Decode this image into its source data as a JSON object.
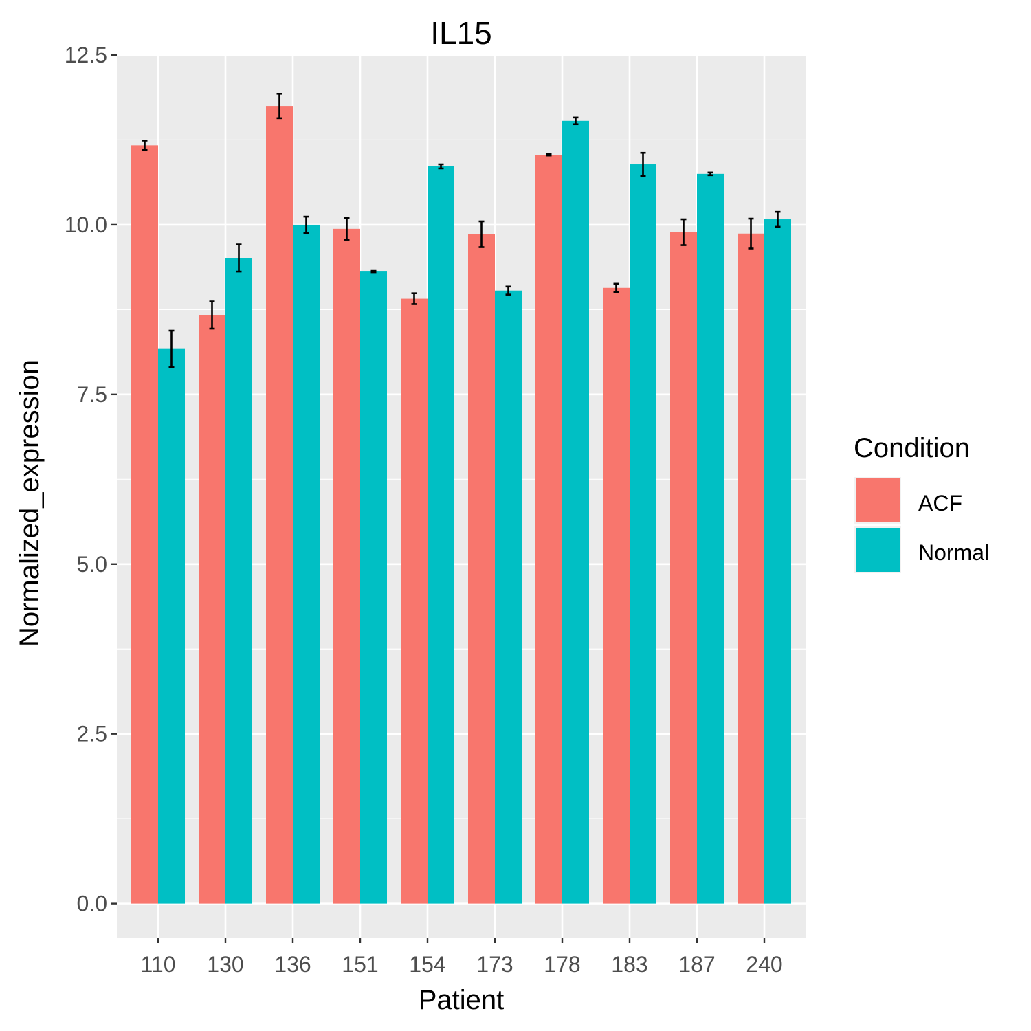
{
  "chart_data": {
    "type": "bar",
    "title": "IL15",
    "xlabel": "Patient",
    "ylabel": "Normalized_expression",
    "categories": [
      "110",
      "130",
      "136",
      "151",
      "154",
      "173",
      "178",
      "183",
      "187",
      "240"
    ],
    "ylim": [
      -0.5,
      12.5
    ],
    "yticks": [
      "0.0",
      "2.5",
      "5.0",
      "7.5",
      "10.0",
      "12.5"
    ],
    "grid": true,
    "legend": {
      "title": "Condition",
      "position": "right"
    },
    "series": [
      {
        "name": "ACF",
        "color": "#F8766D",
        "values": [
          11.17,
          8.67,
          11.75,
          9.94,
          8.91,
          9.86,
          11.03,
          9.07,
          9.89,
          9.87
        ],
        "errors": [
          0.07,
          0.2,
          0.18,
          0.16,
          0.08,
          0.19,
          0.01,
          0.06,
          0.19,
          0.22
        ]
      },
      {
        "name": "Normal",
        "color": "#00BFC4",
        "values": [
          8.17,
          9.51,
          10.0,
          9.31,
          10.86,
          9.03,
          11.53,
          10.89,
          10.75,
          10.08
        ],
        "errors": [
          0.27,
          0.2,
          0.12,
          0.01,
          0.03,
          0.06,
          0.05,
          0.17,
          0.02,
          0.11
        ]
      }
    ]
  }
}
